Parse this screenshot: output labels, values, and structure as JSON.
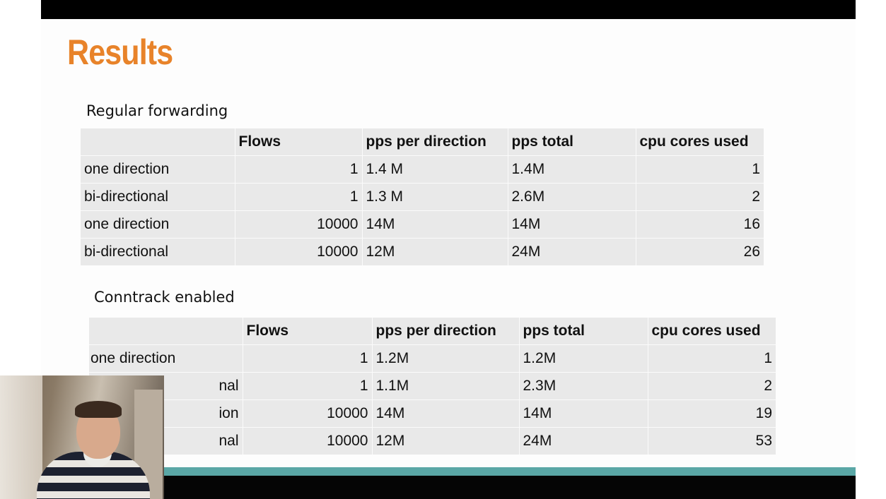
{
  "slide": {
    "title": "Results"
  },
  "regular": {
    "label": "Regular forwarding",
    "headers": [
      "",
      "Flows",
      "pps per direction",
      "pps total",
      "cpu cores used"
    ],
    "rows": [
      [
        "one direction",
        "1",
        "1.4 M",
        "1.4M",
        "1"
      ],
      [
        "bi-directional",
        "1",
        "1.3 M",
        "2.6M",
        "2"
      ],
      [
        "one direction",
        "10000",
        "14M",
        "14M",
        "16"
      ],
      [
        "bi-directional",
        "10000",
        "12M",
        "24M",
        "26"
      ]
    ]
  },
  "conntrack": {
    "label": "Conntrack enabled",
    "headers": [
      "",
      "Flows",
      "pps per direction",
      "pps total",
      "cpu cores used"
    ],
    "rows": [
      [
        "one direction",
        "1",
        "1.2M",
        "1.2M",
        "1"
      ],
      [
        "nal",
        "1",
        "1.1M",
        "2.3M",
        "2"
      ],
      [
        "ion",
        "10000",
        "14M",
        "14M",
        "19"
      ],
      [
        "nal",
        "10000",
        "12M",
        "24M",
        "53"
      ]
    ]
  },
  "colors": {
    "title": "#e8832a",
    "table_bg": "#e9e9e9",
    "footer_teal": "#5aa7a6",
    "bar": "#000000"
  }
}
